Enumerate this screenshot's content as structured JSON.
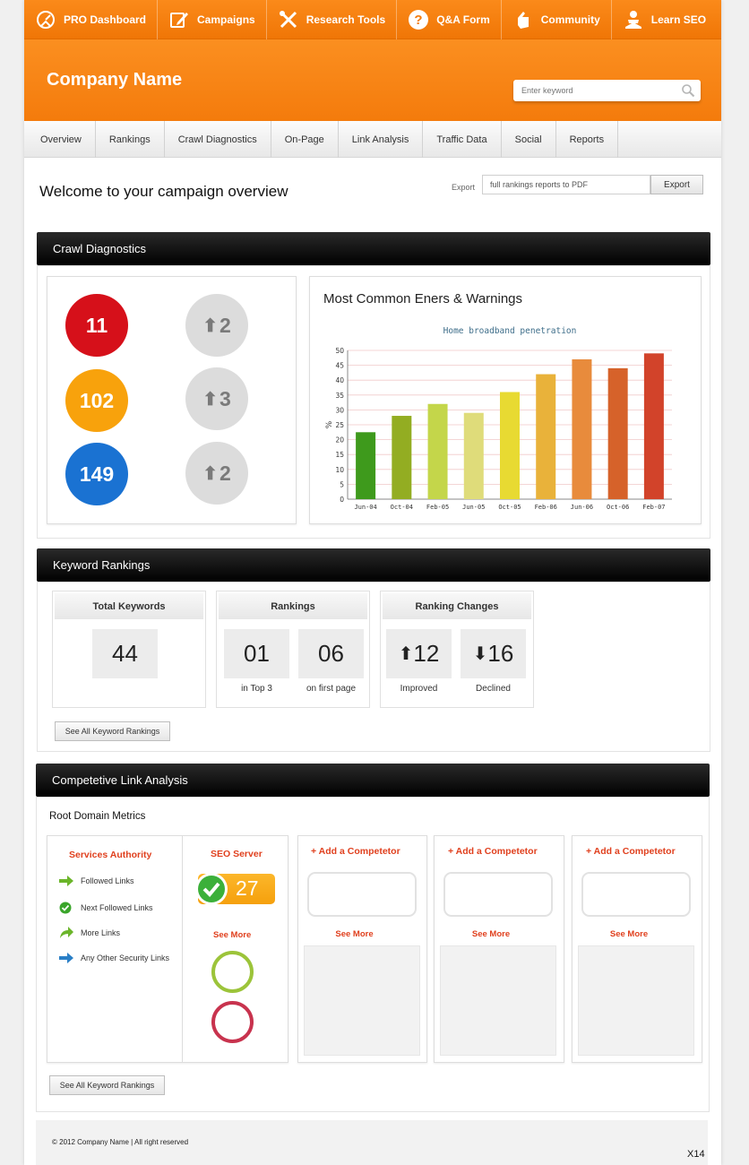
{
  "topnav": [
    {
      "label": "PRO Dashboard",
      "icon": "gauge-icon"
    },
    {
      "label": "Campaigns",
      "icon": "edit-icon"
    },
    {
      "label": "Research Tools",
      "icon": "tools-icon"
    },
    {
      "label": "Q&A Form",
      "icon": "question-icon"
    },
    {
      "label": "Community",
      "icon": "hand-icon"
    },
    {
      "label": "Learn SEO",
      "icon": "reader-icon"
    }
  ],
  "header": {
    "company": "Company Name",
    "search_placeholder": "Enter keyword"
  },
  "subnav": [
    "Overview",
    "Rankings",
    "Crawl Diagnostics",
    "On-Page",
    "Link Analysis",
    "Traffic Data",
    "Social",
    "Reports"
  ],
  "welcome": "Welcome to your campaign overview",
  "export": {
    "label": "Export",
    "value": "full rankings reports to PDF",
    "button": "Export"
  },
  "crawl": {
    "title": "Crawl Diagnostics",
    "counts": [
      {
        "value": "11",
        "color": "#d6101a"
      },
      {
        "value": "102",
        "color": "#f8a20c"
      },
      {
        "value": "149",
        "color": "#1a72d2"
      }
    ],
    "changes": [
      "2",
      "3",
      "2"
    ],
    "chart_heading": "Most Common Eners & Warnings"
  },
  "chart_data": {
    "type": "bar",
    "title": "Home broadband penetration",
    "ylabel": "%",
    "xlabel": "",
    "ylim": [
      0,
      50
    ],
    "yticks": [
      "0",
      "5",
      "10",
      "15",
      "20",
      "25",
      "30",
      "35",
      "40",
      "45",
      "50"
    ],
    "categories": [
      "Jun-04",
      "Oct-04",
      "Feb-05",
      "Jun-05",
      "Oct-05",
      "Feb-06",
      "Jun-06",
      "Oct-06",
      "Feb-07"
    ],
    "values": [
      22.5,
      28,
      32,
      29,
      36,
      42,
      47,
      44,
      49
    ],
    "colors": [
      "#3e9a1c",
      "#93ad22",
      "#c4d64a",
      "#dfdc7a",
      "#e8da32",
      "#e9b23a",
      "#e88b3c",
      "#d6622a",
      "#d2432a"
    ],
    "grid": true
  },
  "keywords": {
    "title": "Keyword Rankings",
    "total_label": "Total Keywords",
    "total_value": "44",
    "rankings_label": "Rankings",
    "top3_value": "01",
    "top3_caption": "in Top 3",
    "first_page_value": "06",
    "first_page_caption": "on first page",
    "changes_label": "Ranking Changes",
    "improved_value": "12",
    "improved_caption": "Improved",
    "declined_value": "16",
    "declined_caption": "Declined",
    "button": "See All Keyword Rankings"
  },
  "links": {
    "title": "Competetive Link Analysis",
    "subtitle": "Root Domain Metrics",
    "authority_title": "Services Authority",
    "items": [
      {
        "label": "Followed Links",
        "icon": "arrow-right-green-icon"
      },
      {
        "label": "Next Followed Links",
        "icon": "check-green-icon"
      },
      {
        "label": "More Links",
        "icon": "curved-arrow-icon"
      },
      {
        "label": "Any Other Security Links",
        "icon": "arrow-right-blue-icon"
      }
    ],
    "server_title": "SEO Server",
    "server_value": "27",
    "see_more": "See More",
    "add_competitor": "+ Add a Competetor",
    "button": "See All Keyword Rankings"
  },
  "footer": {
    "copyright": "© 2012 Company Name  |  All right reserved",
    "page": "X14"
  }
}
